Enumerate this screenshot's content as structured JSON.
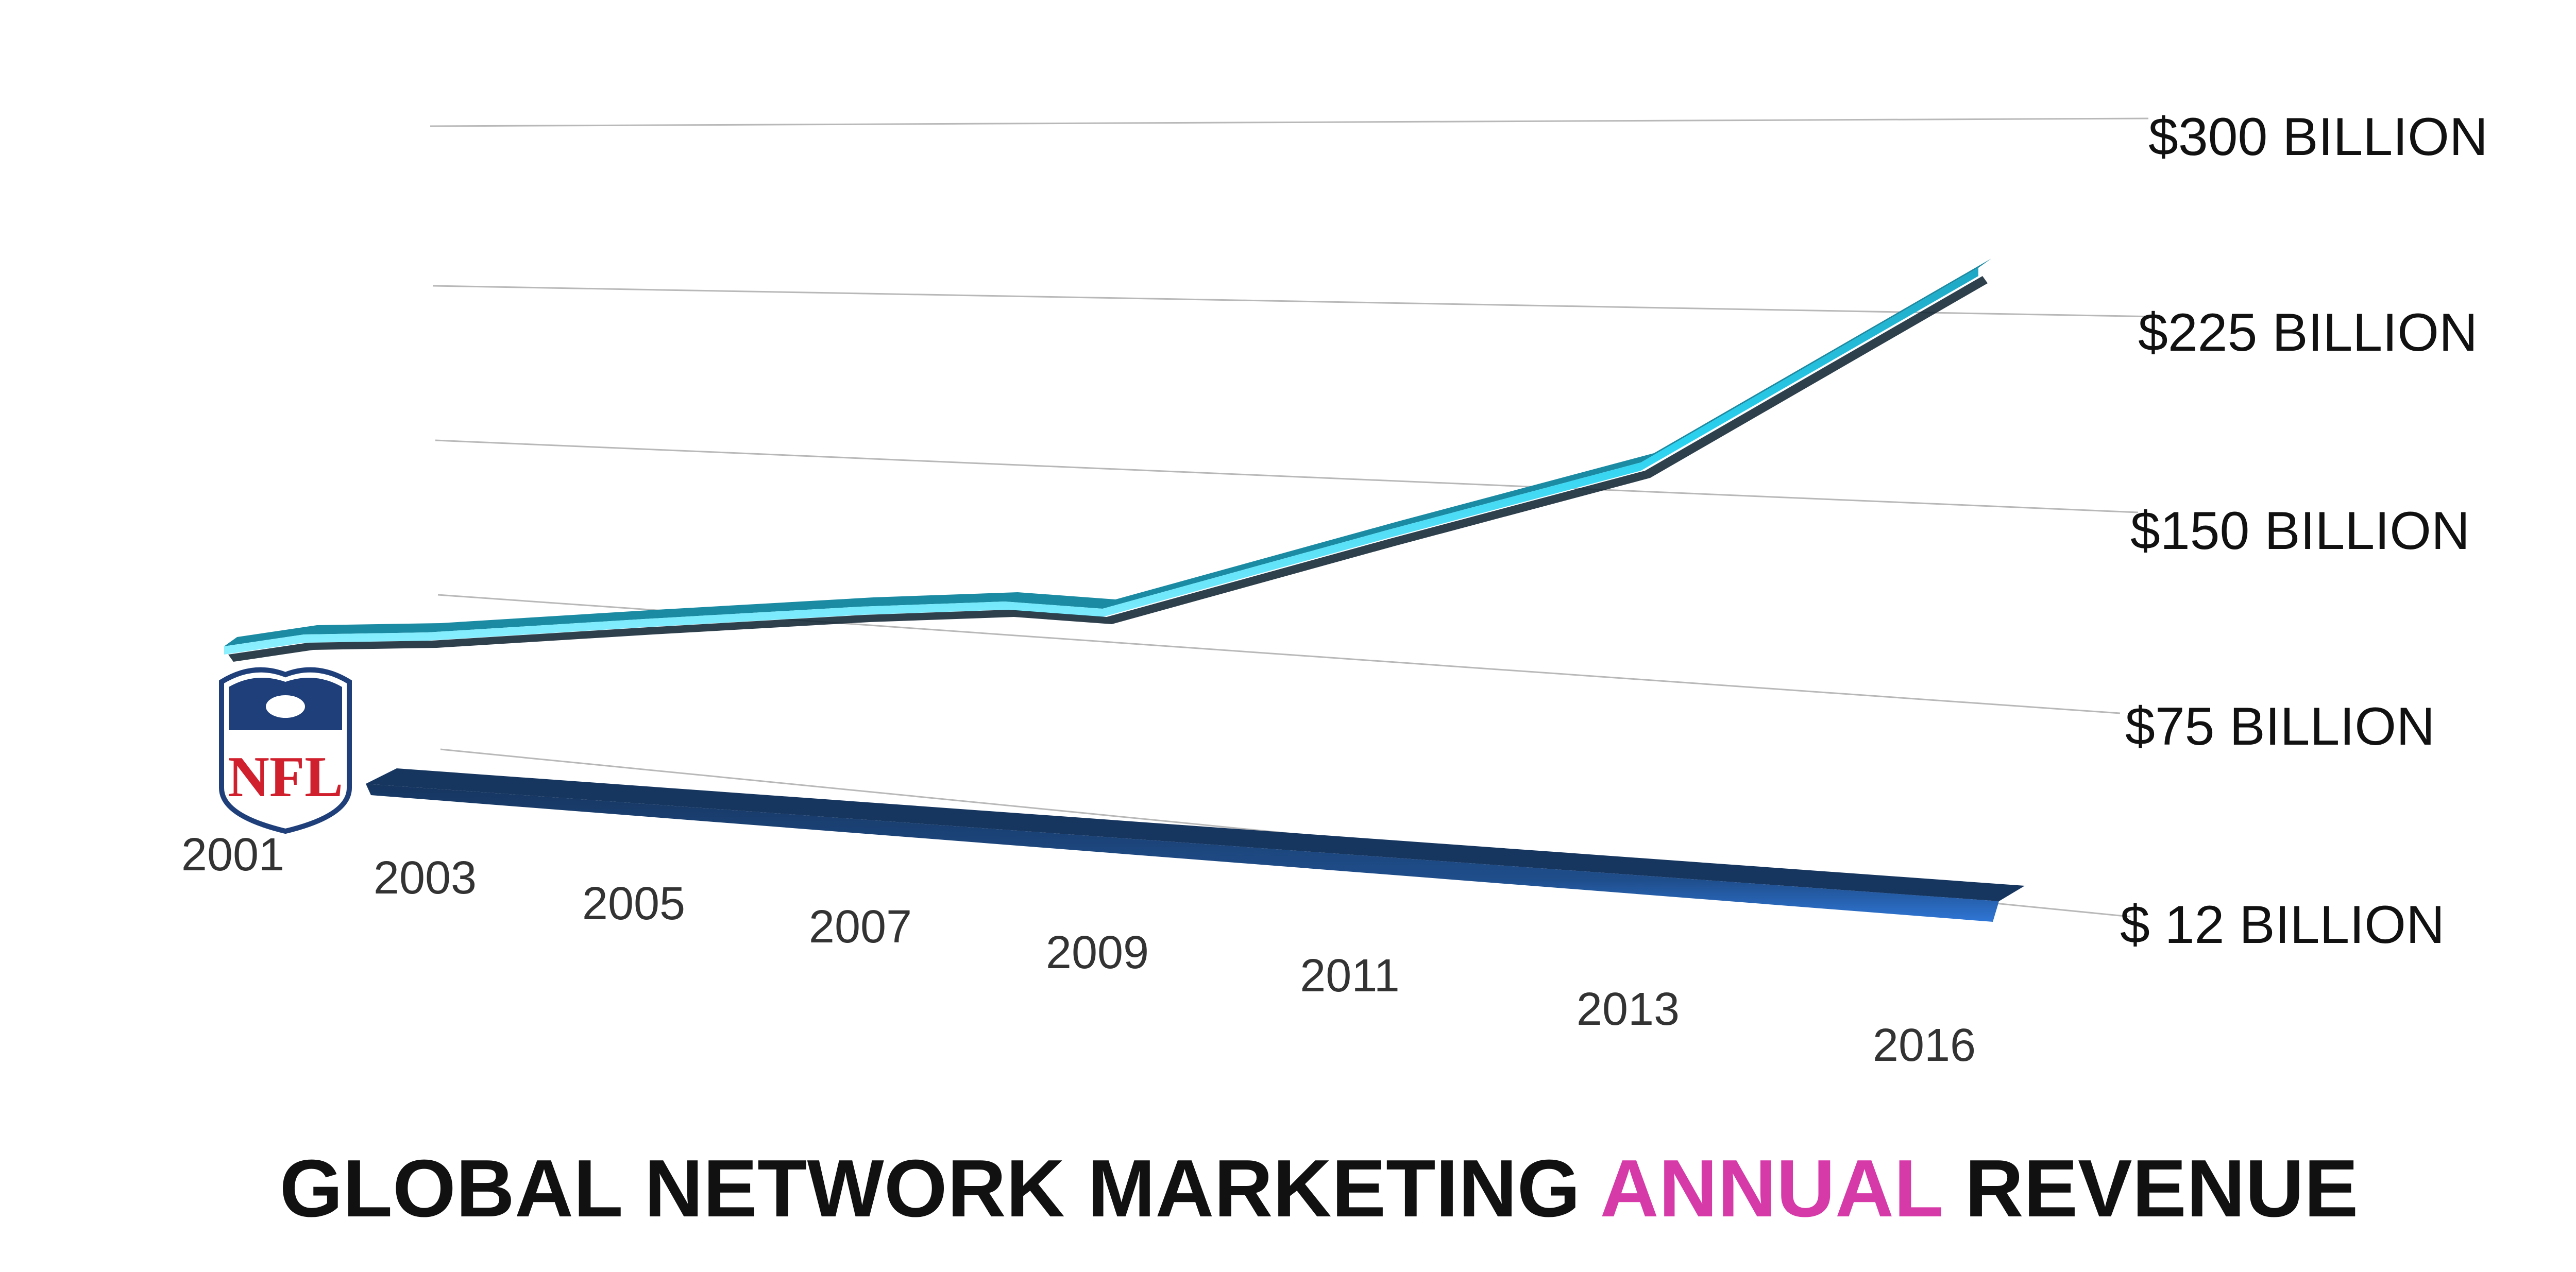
{
  "chart_data": {
    "type": "line",
    "title_parts": [
      "GLOBAL NETWORK MARKETING",
      "ANNUAL",
      "REVENUE"
    ],
    "colors": {
      "title": "#111111",
      "title_highlight": "#d63aa8",
      "network_line": "#2ad2f0",
      "nfl_line": "#1f4e8c",
      "nfl_label": "#1f5aa6",
      "grid": "#b8b8b8",
      "tick_label": "#111111",
      "category_label": "#333333"
    },
    "categories": [
      "2001",
      "2003",
      "2005",
      "2007",
      "2009",
      "2011",
      "2013",
      "2016"
    ],
    "y_ticks": [
      {
        "value": 300,
        "label": "$300 BILLION"
      },
      {
        "value": 225,
        "label": "$225 BILLION"
      },
      {
        "value": 150,
        "label": "$150 BILLION"
      },
      {
        "value": 75,
        "label": "$75 BILLION"
      },
      {
        "value": 12,
        "label": "$ 12 BILLION",
        "highlight": true
      }
    ],
    "series": [
      {
        "key": "network",
        "x": [
          2001,
          2002,
          2003,
          2005,
          2007,
          2008,
          2009,
          2011,
          2013,
          2016
        ],
        "values": [
          100,
          102,
          103,
          108,
          113,
          114,
          115,
          142,
          169,
          228
        ]
      },
      {
        "key": "nfl",
        "logo": "nfl-shield-icon",
        "x": [
          2001,
          2016
        ],
        "values": [
          12,
          12
        ]
      }
    ],
    "ylim": [
      0,
      300
    ],
    "grid": true
  }
}
